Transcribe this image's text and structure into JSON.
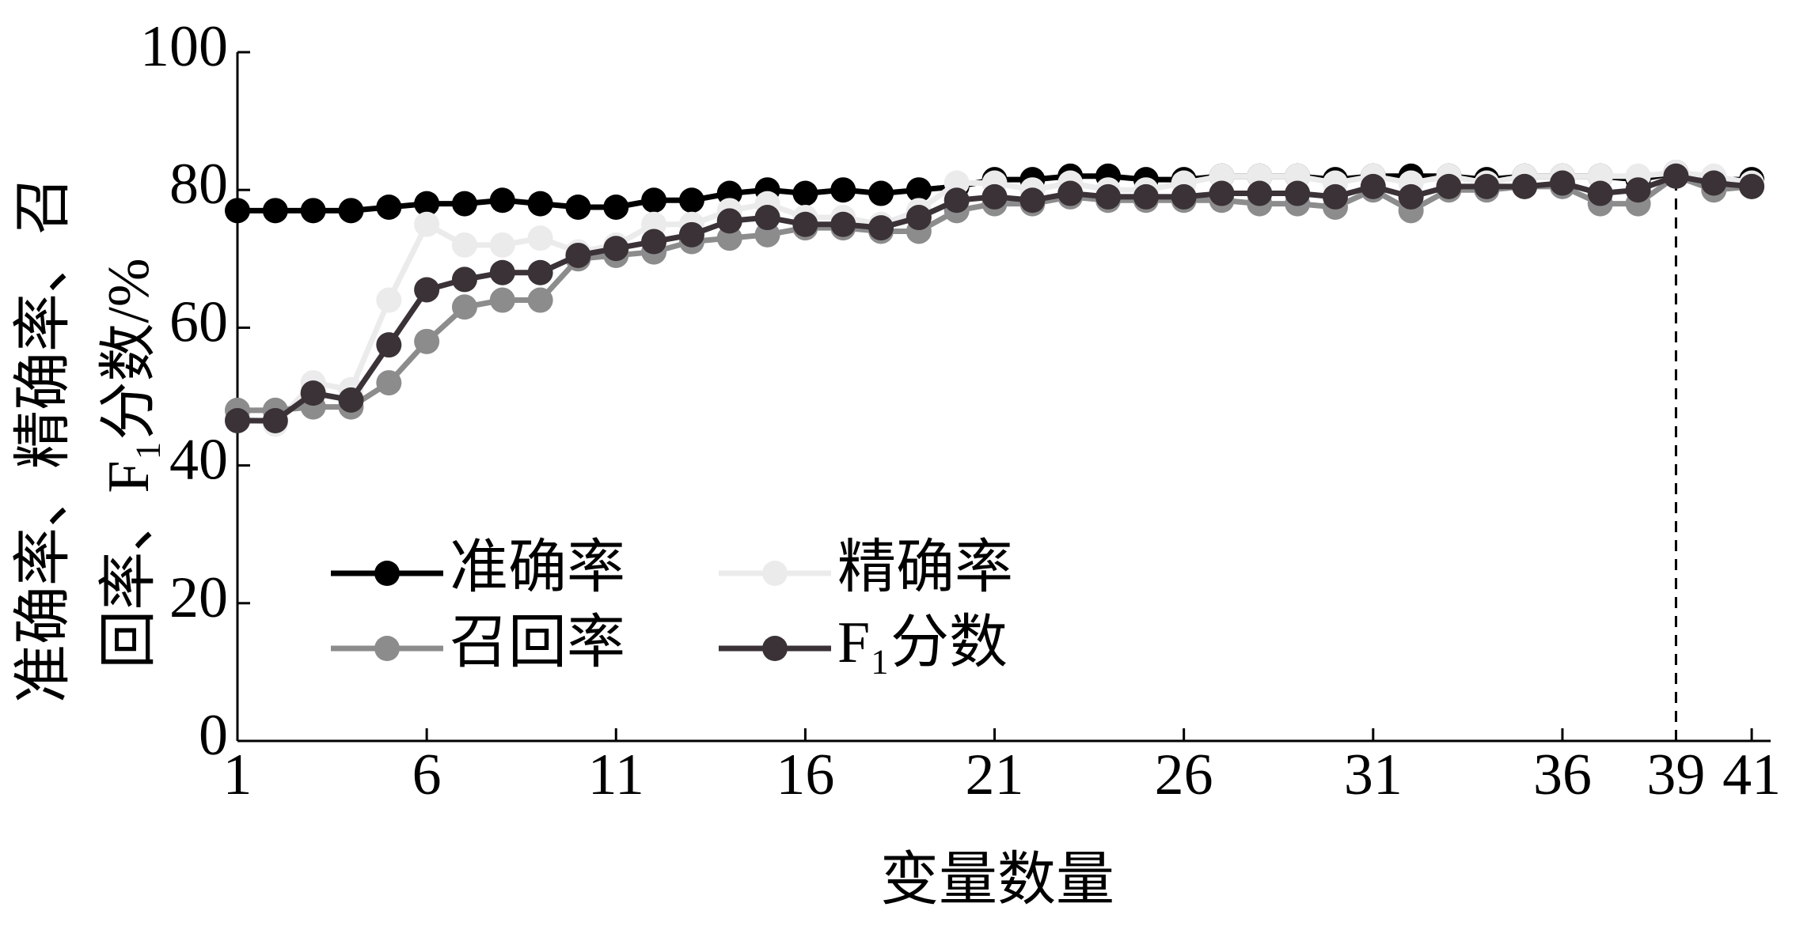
{
  "chart_data": {
    "type": "line",
    "xlabel": "变量数量",
    "ylabel": [
      "准确率、精确率、召",
      "回率、F₁分数/%"
    ],
    "x": [
      1,
      2,
      3,
      4,
      5,
      6,
      7,
      8,
      9,
      10,
      11,
      12,
      13,
      14,
      15,
      16,
      17,
      18,
      19,
      20,
      21,
      22,
      23,
      24,
      25,
      26,
      27,
      28,
      29,
      30,
      31,
      32,
      33,
      34,
      35,
      36,
      37,
      38,
      39,
      40,
      41
    ],
    "series": [
      {
        "name": "准确率",
        "color": "#000000",
        "values": [
          77,
          77,
          77,
          77,
          77.5,
          78,
          78,
          78.5,
          78,
          77.5,
          77.5,
          78.5,
          78.5,
          79.5,
          80,
          79.5,
          80,
          79.5,
          80,
          80.5,
          81.5,
          81.5,
          82,
          82,
          81.5,
          81.5,
          82,
          82,
          82,
          81.5,
          82,
          82,
          82,
          81.5,
          82,
          82,
          82,
          81.5,
          82.5,
          81.5,
          81.5
        ]
      },
      {
        "name": "精确率",
        "color": "#ebebeb",
        "values": [
          47,
          46,
          52,
          51,
          64,
          75,
          72,
          72,
          73,
          71,
          72,
          75,
          75,
          77,
          78,
          76,
          76,
          75,
          77,
          81,
          81,
          80,
          81,
          80,
          80,
          81,
          82,
          82,
          82,
          81,
          82,
          81,
          82,
          81,
          82,
          82,
          82,
          82,
          82.5,
          82,
          81
        ]
      },
      {
        "name": "召回率",
        "color": "#8c8c8c",
        "values": [
          48,
          48,
          48.5,
          48.5,
          52,
          58,
          63,
          64,
          64,
          70,
          70.5,
          71,
          72.5,
          73,
          73.5,
          74.5,
          74.5,
          74,
          74,
          77,
          78,
          78,
          79,
          78.5,
          78.5,
          78.5,
          78.5,
          78,
          78,
          77.5,
          80,
          77,
          80,
          80,
          80.5,
          80.5,
          78,
          78,
          82,
          80,
          80.5
        ]
      },
      {
        "name": "F₁分数",
        "color": "#3a3236",
        "values": [
          46.5,
          46.5,
          50.5,
          49.5,
          57.5,
          65.5,
          67,
          68,
          68,
          70.5,
          71.5,
          72.5,
          73.5,
          75.5,
          76,
          75,
          75,
          74.5,
          76,
          78.5,
          79,
          78.5,
          79.5,
          79,
          79,
          79,
          79.5,
          79.5,
          79.5,
          79,
          80.5,
          79,
          80.5,
          80.5,
          80.5,
          81,
          79.5,
          80,
          82,
          81,
          80.5
        ]
      }
    ],
    "xlim": [
      1,
      41.5
    ],
    "xticks": [
      1,
      6,
      11,
      16,
      21,
      26,
      31,
      36,
      41
    ],
    "ylim": [
      0,
      100
    ],
    "yticks": [
      0,
      20,
      40,
      60,
      80,
      100
    ],
    "highlight_x": 39,
    "highlight_color": "#e00000",
    "legend": "lower left"
  }
}
